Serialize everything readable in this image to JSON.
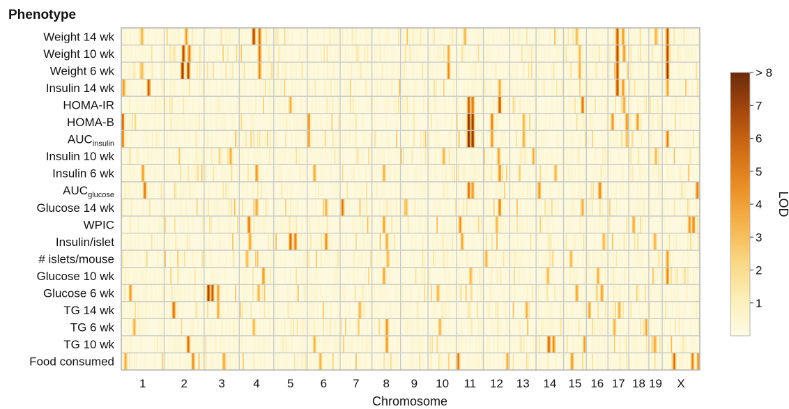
{
  "chart_data": {
    "type": "heatmap",
    "row_axis_label": "Phenotype",
    "xlabel": "Chromosome",
    "phenotypes": [
      {
        "main": "Weight 14 wk",
        "sub": ""
      },
      {
        "main": "Weight 10 wk",
        "sub": ""
      },
      {
        "main": "Weight 6 wk",
        "sub": ""
      },
      {
        "main": "Insulin 14 wk",
        "sub": ""
      },
      {
        "main": "HOMA-IR",
        "sub": ""
      },
      {
        "main": "HOMA-B",
        "sub": ""
      },
      {
        "main": "AUC",
        "sub": "insulin"
      },
      {
        "main": "Insulin 10 wk",
        "sub": ""
      },
      {
        "main": "Insulin 6 wk",
        "sub": ""
      },
      {
        "main": "AUC",
        "sub": "glucose"
      },
      {
        "main": "Glucose 14 wk",
        "sub": ""
      },
      {
        "main": "WPIC",
        "sub": ""
      },
      {
        "main": "Insulin/islet",
        "sub": ""
      },
      {
        "main": "# islets/mouse",
        "sub": ""
      },
      {
        "main": "Glucose 10 wk",
        "sub": ""
      },
      {
        "main": "Glucose 6 wk",
        "sub": ""
      },
      {
        "main": "TG 14 wk",
        "sub": ""
      },
      {
        "main": "TG 6 wk",
        "sub": ""
      },
      {
        "main": "TG 10 wk",
        "sub": ""
      },
      {
        "main": "Food consumed",
        "sub": ""
      }
    ],
    "chromosomes": [
      "1",
      "2",
      "3",
      "4",
      "5",
      "6",
      "7",
      "8",
      "9",
      "10",
      "11",
      "12",
      "13",
      "14",
      "15",
      "16",
      "17",
      "18",
      "19",
      "X"
    ],
    "chromosome_widths": [
      195,
      182,
      160,
      157,
      152,
      150,
      145,
      130,
      125,
      130,
      122,
      120,
      120,
      125,
      104,
      98,
      95,
      91,
      61,
      171
    ],
    "colorbar": {
      "label": "LOD",
      "min": 0,
      "max": 8,
      "ticks": [
        {
          "value": 1,
          "label": "1"
        },
        {
          "value": 2,
          "label": "2"
        },
        {
          "value": 3,
          "label": "3"
        },
        {
          "value": 4,
          "label": "4"
        },
        {
          "value": 5,
          "label": "5"
        },
        {
          "value": 6,
          "label": "6"
        },
        {
          "value": 7,
          "label": "7"
        },
        {
          "value": 8,
          "label": "> 8"
        }
      ],
      "colors": [
        "#fdfbe4",
        "#fbeeb7",
        "#f9d582",
        "#f5b24a",
        "#e98d24",
        "#cf6a14",
        "#a4470d",
        "#6b2a0c"
      ]
    },
    "peaks": [
      [
        [
          1,
          0.48,
          3.6
        ],
        [
          2,
          0.55,
          4.2
        ],
        [
          4,
          0.42,
          7.2
        ],
        [
          4,
          0.58,
          5.5
        ],
        [
          11,
          0.3,
          3.5
        ],
        [
          15,
          0.55,
          3.3
        ],
        [
          17,
          0.45,
          6.4
        ],
        [
          17,
          0.7,
          4.2
        ],
        [
          19,
          0.5,
          3.6
        ],
        [
          20,
          0.12,
          6.5
        ]
      ],
      [
        [
          2,
          0.48,
          6.8
        ],
        [
          2,
          0.62,
          5.2
        ],
        [
          4,
          0.58,
          5.4
        ],
        [
          10,
          0.7,
          3.6
        ],
        [
          15,
          0.7,
          3.2
        ],
        [
          17,
          0.45,
          7.0
        ],
        [
          17,
          0.75,
          4.4
        ],
        [
          20,
          0.12,
          6.9
        ]
      ],
      [
        [
          1,
          0.48,
          3.4
        ],
        [
          2,
          0.45,
          7.6
        ],
        [
          2,
          0.6,
          6.8
        ],
        [
          4,
          0.58,
          4.8
        ],
        [
          10,
          0.7,
          4.6
        ],
        [
          15,
          0.7,
          3.5
        ],
        [
          17,
          0.45,
          6.7
        ],
        [
          20,
          0.12,
          7.5
        ]
      ],
      [
        [
          1,
          0.04,
          4.4
        ],
        [
          1,
          0.62,
          6.4
        ],
        [
          12,
          0.6,
          3.8
        ],
        [
          17,
          0.45,
          6.8
        ],
        [
          17,
          0.7,
          4.3
        ],
        [
          20,
          0.12,
          4.0
        ]
      ],
      [
        [
          5,
          0.5,
          3.6
        ],
        [
          11,
          0.45,
          6.3
        ],
        [
          11,
          0.6,
          5.6
        ],
        [
          12,
          0.6,
          6.4
        ],
        [
          15,
          0.8,
          5.4
        ],
        [
          17,
          0.75,
          3.9
        ]
      ],
      [
        [
          1,
          0.03,
          6.0
        ],
        [
          6,
          0.05,
          4.6
        ],
        [
          11,
          0.45,
          8.5
        ],
        [
          11,
          0.58,
          7.8
        ],
        [
          12,
          0.3,
          5.2
        ],
        [
          13,
          0.5,
          3.5
        ],
        [
          17,
          0.2,
          4.4
        ],
        [
          17,
          0.9,
          4.6
        ],
        [
          18,
          0.4,
          4.2
        ]
      ],
      [
        [
          1,
          0.03,
          5.2
        ],
        [
          6,
          0.05,
          4.2
        ],
        [
          11,
          0.45,
          8.6
        ],
        [
          11,
          0.58,
          8.2
        ],
        [
          12,
          0.3,
          4.4
        ],
        [
          13,
          0.5,
          3.7
        ],
        [
          17,
          0.9,
          3.4
        ],
        [
          20,
          0.12,
          5.0
        ]
      ],
      [
        [
          3,
          0.75,
          3.6
        ],
        [
          10,
          0.55,
          3.5
        ],
        [
          12,
          0.55,
          4.0
        ],
        [
          13,
          0.9,
          3.6
        ],
        [
          19,
          0.5,
          3.3
        ]
      ],
      [
        [
          1,
          0.5,
          4.2
        ],
        [
          4,
          0.5,
          4.5
        ],
        [
          6,
          0.2,
          3.8
        ],
        [
          8,
          0.4,
          3.6
        ],
        [
          12,
          0.62,
          4.6
        ],
        [
          14,
          0.7,
          3.5
        ]
      ],
      [
        [
          1,
          0.55,
          5.3
        ],
        [
          11,
          0.45,
          5.6
        ],
        [
          11,
          0.58,
          4.4
        ],
        [
          14,
          0.1,
          4.5
        ],
        [
          16,
          0.6,
          5.0
        ],
        [
          20,
          0.93,
          5.2
        ]
      ],
      [
        [
          4,
          0.5,
          4.0
        ],
        [
          6,
          0.55,
          3.6
        ],
        [
          7,
          0.05,
          5.4
        ],
        [
          9,
          0.2,
          3.4
        ],
        [
          12,
          0.6,
          5.0
        ],
        [
          15,
          0.8,
          3.6
        ]
      ],
      [
        [
          4,
          0.28,
          5.4
        ],
        [
          8,
          0.4,
          4.0
        ],
        [
          11,
          0.1,
          4.6
        ],
        [
          12,
          0.5,
          3.4
        ],
        [
          18,
          0.2,
          3.9
        ],
        [
          20,
          0.72,
          4.4
        ],
        [
          20,
          0.83,
          4.9
        ]
      ],
      [
        [
          4,
          0.3,
          4.0
        ],
        [
          5,
          0.5,
          5.8
        ],
        [
          5,
          0.62,
          5.2
        ],
        [
          6,
          0.55,
          4.7
        ],
        [
          8,
          0.5,
          3.7
        ],
        [
          11,
          0.2,
          3.9
        ],
        [
          16,
          0.8,
          3.5
        ],
        [
          19,
          0.4,
          3.6
        ]
      ],
      [
        [
          4,
          0.2,
          3.4
        ],
        [
          8,
          0.55,
          3.5
        ],
        [
          12,
          0.1,
          3.6
        ],
        [
          15,
          0.3,
          3.5
        ],
        [
          20,
          0.12,
          4.2
        ]
      ],
      [
        [
          4,
          0.7,
          4.3
        ],
        [
          8,
          0.4,
          3.9
        ],
        [
          11,
          0.5,
          3.5
        ],
        [
          14,
          0.4,
          3.3
        ],
        [
          16,
          0.5,
          3.6
        ],
        [
          20,
          0.12,
          4.9
        ]
      ],
      [
        [
          1,
          0.2,
          4.3
        ],
        [
          3,
          0.1,
          7.3
        ],
        [
          3,
          0.22,
          6.4
        ],
        [
          3,
          0.4,
          4.0
        ],
        [
          4,
          0.55,
          3.5
        ],
        [
          10,
          0.35,
          3.6
        ],
        [
          15,
          0.55,
          4.0
        ],
        [
          16,
          0.7,
          4.1
        ]
      ],
      [
        [
          2,
          0.22,
          5.8
        ],
        [
          3,
          0.4,
          3.6
        ],
        [
          7,
          0.6,
          3.6
        ],
        [
          13,
          0.62,
          3.5
        ],
        [
          16,
          0.1,
          3.9
        ],
        [
          17,
          0.5,
          3.6
        ]
      ],
      [
        [
          1,
          0.3,
          3.7
        ],
        [
          4,
          0.4,
          3.4
        ],
        [
          8,
          0.5,
          4.5
        ],
        [
          10,
          0.4,
          3.5
        ],
        [
          17,
          0.3,
          3.5
        ],
        [
          18,
          0.85,
          3.8
        ]
      ],
      [
        [
          2,
          0.6,
          5.6
        ],
        [
          6,
          0.2,
          3.5
        ],
        [
          8,
          0.5,
          4.3
        ],
        [
          14,
          0.45,
          6.0
        ],
        [
          14,
          0.62,
          4.8
        ],
        [
          15,
          0.9,
          4.0
        ],
        [
          19,
          0.45,
          4.0
        ]
      ],
      [
        [
          1,
          0.1,
          3.8
        ],
        [
          2,
          0.72,
          4.7
        ],
        [
          3,
          0.55,
          4.0
        ],
        [
          6,
          0.4,
          3.5
        ],
        [
          11,
          0.05,
          5.2
        ],
        [
          12,
          0.9,
          3.6
        ],
        [
          15,
          0.35,
          4.4
        ],
        [
          20,
          0.3,
          5.7
        ],
        [
          20,
          0.8,
          4.9
        ],
        [
          20,
          0.95,
          4.6
        ]
      ]
    ]
  }
}
